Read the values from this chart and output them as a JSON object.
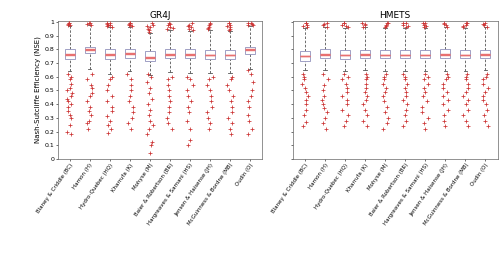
{
  "categories": [
    "Blaney & Criddle (BC)",
    "Hamon (H)",
    "Hydro-Quebec (HQ)",
    "Kharrufa (K)",
    "Mohyse (M)",
    "Baier & Robertson (BR)",
    "Hargreaves & Samani (HS)",
    "Jensen & Haisense (JH)",
    "McGuinness & Bordne (MB)",
    "Oudin (O)"
  ],
  "titles": [
    "GR4J",
    "HMETS"
  ],
  "ylabel": "Nash-Sutcliffe Efficiency (NSE)",
  "ylim": [
    0,
    1.0
  ],
  "yticks": [
    0,
    0.1,
    0.2,
    0.3,
    0.4,
    0.5,
    0.6,
    0.7,
    0.8,
    0.9,
    1.0
  ],
  "yticklabels": [
    "0",
    "0.1",
    "0.2",
    "0.3",
    "0.4",
    "0.5",
    "0.6",
    "0.7",
    "0.8",
    "0.9",
    "1"
  ],
  "box_color": "#9090bb",
  "median_color": "#e87070",
  "outlier_color": "#cc3333",
  "whisker_color": "#555555",
  "GR4J": {
    "medians": [
      0.76,
      0.795,
      0.762,
      0.768,
      0.74,
      0.762,
      0.762,
      0.758,
      0.758,
      0.795
    ],
    "q1": [
      0.73,
      0.77,
      0.73,
      0.74,
      0.715,
      0.737,
      0.737,
      0.73,
      0.73,
      0.765
    ],
    "q3": [
      0.8,
      0.815,
      0.8,
      0.8,
      0.79,
      0.8,
      0.8,
      0.793,
      0.795,
      0.82
    ],
    "whislo": [
      0.64,
      0.66,
      0.62,
      0.64,
      0.61,
      0.632,
      0.625,
      0.625,
      0.63,
      0.66
    ],
    "whishi": [
      0.97,
      0.975,
      0.96,
      0.965,
      0.92,
      0.94,
      0.935,
      0.94,
      0.935,
      0.97
    ],
    "fliers_lo": [
      [
        0.18,
        0.2,
        0.25,
        0.3,
        0.32,
        0.35,
        0.38,
        0.4,
        0.42,
        0.44,
        0.46,
        0.48,
        0.5,
        0.52,
        0.55,
        0.58,
        0.6,
        0.62
      ],
      [
        0.22,
        0.26,
        0.28,
        0.32,
        0.35,
        0.38,
        0.42,
        0.46,
        0.48,
        0.52,
        0.54,
        0.58,
        0.62
      ],
      [
        0.19,
        0.22,
        0.25,
        0.28,
        0.31,
        0.35,
        0.38,
        0.42,
        0.46,
        0.5,
        0.54,
        0.58,
        0.6
      ],
      [
        0.22,
        0.26,
        0.3,
        0.34,
        0.38,
        0.42,
        0.46,
        0.5,
        0.54,
        0.58,
        0.62
      ],
      [
        0.04,
        0.1,
        0.12,
        0.18,
        0.22,
        0.25,
        0.28,
        0.32,
        0.36,
        0.4,
        0.44,
        0.48,
        0.52,
        0.56,
        0.6,
        0.62
      ],
      [
        0.22,
        0.26,
        0.3,
        0.34,
        0.38,
        0.42,
        0.46,
        0.5,
        0.54,
        0.58,
        0.6
      ],
      [
        0.1,
        0.14,
        0.22,
        0.28,
        0.34,
        0.38,
        0.42,
        0.46,
        0.5,
        0.54,
        0.58,
        0.6
      ],
      [
        0.22,
        0.26,
        0.3,
        0.34,
        0.38,
        0.42,
        0.46,
        0.5,
        0.54,
        0.58,
        0.6
      ],
      [
        0.18,
        0.22,
        0.26,
        0.3,
        0.34,
        0.38,
        0.42,
        0.46,
        0.5,
        0.54,
        0.58,
        0.6
      ],
      [
        0.18,
        0.22,
        0.28,
        0.32,
        0.38,
        0.42,
        0.46,
        0.5,
        0.56,
        0.62,
        0.65
      ]
    ],
    "fliers_hi": [
      [
        0.975,
        0.98,
        0.985,
        0.99,
        0.995
      ],
      [
        0.98,
        0.985,
        0.99,
        0.995
      ],
      [
        0.965,
        0.97,
        0.975,
        0.98,
        0.985,
        0.99,
        0.995
      ],
      [
        0.97,
        0.975,
        0.98,
        0.985,
        0.99,
        0.995
      ],
      [
        0.93,
        0.94,
        0.95,
        0.96,
        0.97,
        0.98,
        0.99
      ],
      [
        0.945,
        0.955,
        0.965,
        0.975,
        0.985,
        0.995
      ],
      [
        0.94,
        0.95,
        0.96,
        0.97,
        0.98,
        0.99
      ],
      [
        0.945,
        0.955,
        0.965,
        0.975,
        0.985,
        0.995
      ],
      [
        0.94,
        0.95,
        0.96,
        0.97,
        0.98,
        0.99,
        0.995
      ],
      [
        0.975,
        0.98,
        0.985,
        0.99,
        0.995
      ]
    ]
  },
  "HMETS": {
    "medians": [
      0.748,
      0.762,
      0.758,
      0.762,
      0.758,
      0.758,
      0.758,
      0.762,
      0.758,
      0.762
    ],
    "q1": [
      0.715,
      0.735,
      0.73,
      0.738,
      0.735,
      0.735,
      0.735,
      0.735,
      0.735,
      0.735
    ],
    "q3": [
      0.79,
      0.8,
      0.795,
      0.798,
      0.795,
      0.795,
      0.795,
      0.8,
      0.795,
      0.798
    ],
    "whislo": [
      0.648,
      0.648,
      0.645,
      0.648,
      0.645,
      0.645,
      0.645,
      0.645,
      0.645,
      0.648
    ],
    "whishi": [
      0.955,
      0.96,
      0.955,
      0.96,
      0.955,
      0.955,
      0.955,
      0.96,
      0.955,
      0.96
    ],
    "fliers_lo": [
      [
        0.24,
        0.27,
        0.32,
        0.36,
        0.4,
        0.43,
        0.46,
        0.49,
        0.52,
        0.55,
        0.58,
        0.6,
        0.62
      ],
      [
        0.22,
        0.26,
        0.3,
        0.34,
        0.37,
        0.4,
        0.43,
        0.46,
        0.5,
        0.54,
        0.58,
        0.62
      ],
      [
        0.24,
        0.28,
        0.32,
        0.36,
        0.4,
        0.43,
        0.46,
        0.49,
        0.52,
        0.55,
        0.58,
        0.6,
        0.62
      ],
      [
        0.24,
        0.28,
        0.32,
        0.36,
        0.4,
        0.43,
        0.46,
        0.49,
        0.52,
        0.55,
        0.58,
        0.6,
        0.62
      ],
      [
        0.22,
        0.26,
        0.3,
        0.34,
        0.38,
        0.42,
        0.46,
        0.49,
        0.52,
        0.55,
        0.58,
        0.6,
        0.62
      ],
      [
        0.24,
        0.28,
        0.32,
        0.36,
        0.4,
        0.43,
        0.46,
        0.49,
        0.52,
        0.55,
        0.58,
        0.6,
        0.62
      ],
      [
        0.22,
        0.26,
        0.3,
        0.34,
        0.38,
        0.42,
        0.46,
        0.49,
        0.52,
        0.55,
        0.58,
        0.6,
        0.62
      ],
      [
        0.24,
        0.28,
        0.32,
        0.36,
        0.4,
        0.43,
        0.46,
        0.49,
        0.52,
        0.55,
        0.58,
        0.6,
        0.62
      ],
      [
        0.24,
        0.28,
        0.32,
        0.36,
        0.4,
        0.43,
        0.46,
        0.49,
        0.52,
        0.55,
        0.58,
        0.6,
        0.62
      ],
      [
        0.24,
        0.28,
        0.32,
        0.36,
        0.4,
        0.43,
        0.46,
        0.49,
        0.52,
        0.55,
        0.58,
        0.6,
        0.62
      ]
    ],
    "fliers_hi": [
      [
        0.96,
        0.97,
        0.98,
        0.99,
        0.995
      ],
      [
        0.965,
        0.975,
        0.985,
        0.995
      ],
      [
        0.96,
        0.97,
        0.98,
        0.99,
        0.995
      ],
      [
        0.965,
        0.975,
        0.985,
        0.995
      ],
      [
        0.96,
        0.97,
        0.98,
        0.99,
        0.995
      ],
      [
        0.96,
        0.97,
        0.98,
        0.99,
        0.995
      ],
      [
        0.96,
        0.97,
        0.98,
        0.99,
        0.995
      ],
      [
        0.965,
        0.975,
        0.985,
        0.995
      ],
      [
        0.96,
        0.97,
        0.98,
        0.99,
        0.995
      ],
      [
        0.965,
        0.975,
        0.985,
        0.995
      ]
    ]
  }
}
